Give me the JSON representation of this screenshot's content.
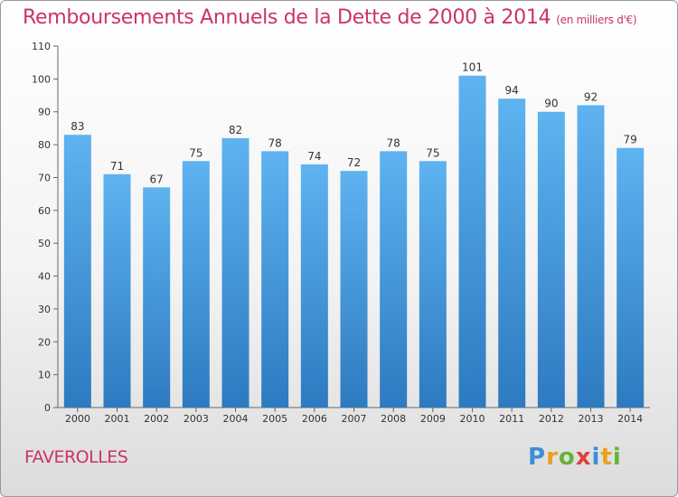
{
  "title": "Remboursements Annuels de la Dette de 2000 à 2014",
  "subtitle": "(en milliers d'€)",
  "commune": "FAVEROLLES",
  "logo_text": "Proxiti",
  "colors": {
    "accent": "#cc3366",
    "bar": "#3d8fd3"
  },
  "chart_data": {
    "type": "bar",
    "title": "Remboursements Annuels de la Dette de 2000 à 2014",
    "subtitle": "(en milliers d'€)",
    "xlabel": "",
    "ylabel": "",
    "categories": [
      "2000",
      "2001",
      "2002",
      "2003",
      "2004",
      "2005",
      "2006",
      "2007",
      "2008",
      "2009",
      "2010",
      "2011",
      "2012",
      "2013",
      "2014"
    ],
    "values": [
      83,
      71,
      67,
      75,
      82,
      78,
      74,
      72,
      78,
      75,
      101,
      94,
      90,
      92,
      79
    ],
    "ylim": [
      0,
      110
    ],
    "yticks": [
      0,
      10,
      20,
      30,
      40,
      50,
      60,
      70,
      80,
      90,
      100,
      110
    ],
    "grid": false,
    "legend": "none"
  }
}
